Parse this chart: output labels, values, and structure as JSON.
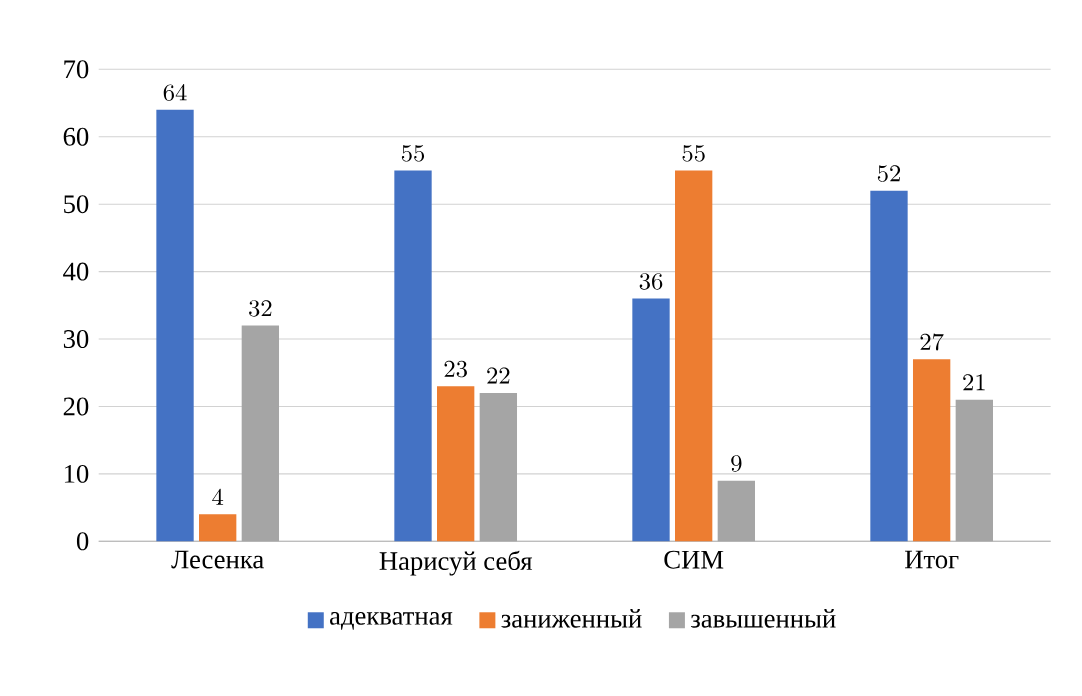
{
  "chart_data": {
    "type": "bar",
    "categories": [
      "Лесенка",
      "Нарисуй себя",
      "СИМ",
      "Итог"
    ],
    "series": [
      {
        "name": "адекватная",
        "color": "#4472c4",
        "values": [
          64,
          55,
          36,
          52
        ]
      },
      {
        "name": "заниженный",
        "color": "#ed7d31",
        "values": [
          4,
          23,
          55,
          27
        ]
      },
      {
        "name": "завышенный",
        "color": "#a5a5a5",
        "values": [
          32,
          22,
          9,
          21
        ]
      }
    ],
    "ylim": [
      0,
      70
    ],
    "yticks": [
      0,
      10,
      20,
      30,
      40,
      50,
      60,
      70
    ],
    "grid": "y",
    "legend": "bottom",
    "data_labels": true
  }
}
